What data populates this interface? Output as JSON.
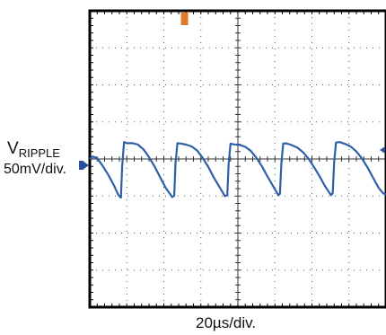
{
  "chart_data": {
    "type": "line",
    "title": "",
    "channel_label": {
      "main": "V",
      "sub": "RIPPLE"
    },
    "y_scale_label": "50mV/div.",
    "x_scale_label": "20µs/div.",
    "x_unit": "µs",
    "y_unit": "mV",
    "divisions": {
      "x": 8,
      "y": 8
    },
    "xlim": [
      0,
      160
    ],
    "ylim": [
      -200,
      200
    ],
    "grid": true,
    "trace_color": "#2f5fa8",
    "trigger_marker_color": "#e07a28",
    "ground_marker_color": "#2a4f9a",
    "series": [
      {
        "points": [
          [
            0,
            0
          ],
          [
            1.5,
            4
          ],
          [
            4,
            2
          ],
          [
            7,
            -8
          ],
          [
            10,
            -20
          ],
          [
            13,
            -34
          ],
          [
            15.5,
            -48
          ],
          [
            16.8,
            -52
          ],
          [
            17.5,
            -10
          ],
          [
            18.5,
            22
          ],
          [
            20,
            20
          ],
          [
            23,
            20
          ],
          [
            26,
            18
          ],
          [
            29,
            12
          ],
          [
            32,
            2
          ],
          [
            35,
            -10
          ],
          [
            38,
            -24
          ],
          [
            41,
            -38
          ],
          [
            44.5,
            -50
          ],
          [
            45.6,
            -48
          ],
          [
            46.3,
            -5
          ],
          [
            47.3,
            22
          ],
          [
            49,
            21
          ],
          [
            52,
            19
          ],
          [
            55,
            16
          ],
          [
            58,
            10
          ],
          [
            61,
            0
          ],
          [
            64,
            -12
          ],
          [
            67,
            -26
          ],
          [
            70.5,
            -40
          ],
          [
            73,
            -50
          ],
          [
            74.3,
            -48
          ],
          [
            75,
            -5
          ],
          [
            76,
            22
          ],
          [
            78,
            21
          ],
          [
            81,
            20
          ],
          [
            84,
            17
          ],
          [
            87,
            11
          ],
          [
            90,
            1
          ],
          [
            93,
            -11
          ],
          [
            96,
            -25
          ],
          [
            99,
            -38
          ],
          [
            101.8,
            -50
          ],
          [
            102.7,
            -48
          ],
          [
            103.5,
            -5
          ],
          [
            104.5,
            21
          ],
          [
            106,
            22
          ],
          [
            109,
            20
          ],
          [
            112,
            17
          ],
          [
            115,
            11
          ],
          [
            118,
            2
          ],
          [
            121,
            -10
          ],
          [
            124,
            -23
          ],
          [
            127,
            -37
          ],
          [
            130.3,
            -50
          ],
          [
            131.2,
            -48
          ],
          [
            132,
            -5
          ],
          [
            133,
            21
          ],
          [
            135,
            22
          ],
          [
            138,
            20
          ],
          [
            141,
            17
          ],
          [
            144,
            11
          ],
          [
            147,
            2
          ],
          [
            150,
            -10
          ],
          [
            153,
            -24
          ],
          [
            156,
            -38
          ],
          [
            158.5,
            -46
          ],
          [
            160,
            -48
          ]
        ]
      }
    ]
  }
}
